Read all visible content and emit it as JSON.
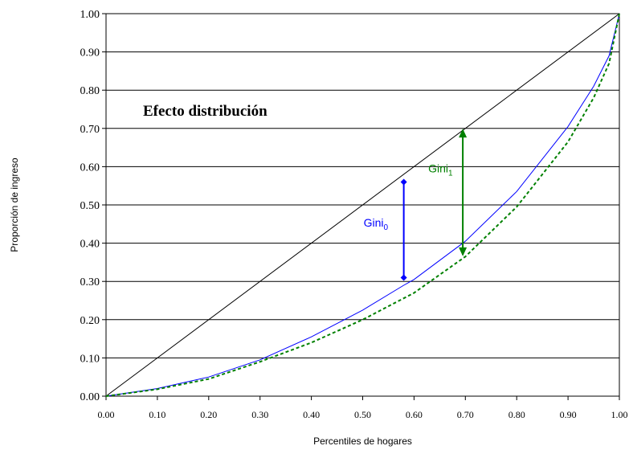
{
  "chart_data": {
    "type": "line",
    "xlabel": "Percentiles de hogares",
    "ylabel": "Proporción de ingreso",
    "xlim": [
      0,
      1
    ],
    "ylim": [
      0,
      1
    ],
    "x_ticks": [
      "0.00",
      "0.10",
      "0.20",
      "0.30",
      "0.40",
      "0.50",
      "0.60",
      "0.70",
      "0.80",
      "0.90",
      "1.00"
    ],
    "y_ticks": [
      "0.00",
      "0.10",
      "0.20",
      "0.30",
      "0.40",
      "0.50",
      "0.60",
      "0.70",
      "0.80",
      "0.90",
      "1.00"
    ],
    "grid": "horizontal",
    "annotation_title": "Efecto distribución",
    "series": [
      {
        "style": "solid",
        "color": "#000000",
        "x": [
          0,
          1
        ],
        "y": [
          0,
          1
        ]
      },
      {
        "style": "solid",
        "color": "#0000ff",
        "x": [
          0,
          0.1,
          0.2,
          0.3,
          0.4,
          0.5,
          0.58,
          0.6,
          0.7,
          0.8,
          0.9,
          0.95,
          0.98,
          1.0
        ],
        "y": [
          0,
          0.02,
          0.05,
          0.095,
          0.155,
          0.225,
          0.29,
          0.305,
          0.405,
          0.535,
          0.705,
          0.81,
          0.89,
          1.0
        ]
      },
      {
        "style": "dashed",
        "color": "#008000",
        "x": [
          0,
          0.1,
          0.2,
          0.3,
          0.4,
          0.5,
          0.6,
          0.7,
          0.8,
          0.9,
          0.95,
          0.98,
          1.0
        ],
        "y": [
          0,
          0.018,
          0.045,
          0.09,
          0.14,
          0.2,
          0.27,
          0.365,
          0.495,
          0.665,
          0.78,
          0.87,
          1.0
        ]
      }
    ],
    "gini_labels": [
      {
        "text": "Gini",
        "sub": "0",
        "color": "#0000ff",
        "x": 0.58,
        "y_top": 0.56,
        "y_bottom": 0.31
      },
      {
        "text": "Gini",
        "sub": "1",
        "color": "#008000",
        "x": 0.695,
        "y_top": 0.695,
        "y_bottom": 0.37
      }
    ]
  }
}
